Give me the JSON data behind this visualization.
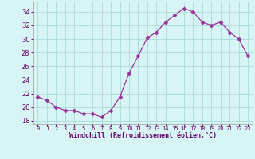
{
  "x": [
    0,
    1,
    2,
    3,
    4,
    5,
    6,
    7,
    8,
    9,
    10,
    11,
    12,
    13,
    14,
    15,
    16,
    17,
    18,
    19,
    20,
    21,
    22,
    23
  ],
  "y": [
    21.5,
    21.0,
    20.0,
    19.5,
    19.5,
    19.0,
    19.0,
    18.5,
    19.5,
    21.5,
    25.0,
    27.5,
    30.2,
    31.0,
    32.5,
    33.5,
    34.5,
    34.0,
    32.5,
    32.0,
    32.5,
    31.0,
    30.0,
    27.5
  ],
  "line_color": "#993399",
  "marker": "D",
  "marker_size": 2.5,
  "bg_color": "#d8f5f5",
  "grid_color": "#b0dede",
  "xlabel": "Windchill (Refroidissement éolien,°C)",
  "ylabel_ticks": [
    18,
    20,
    22,
    24,
    26,
    28,
    30,
    32,
    34
  ],
  "xlim": [
    -0.5,
    23.5
  ],
  "ylim": [
    17.5,
    35.5
  ],
  "xtick_labels": [
    "0",
    "1",
    "2",
    "3",
    "4",
    "5",
    "6",
    "7",
    "8",
    "9",
    "10",
    "11",
    "12",
    "13",
    "14",
    "15",
    "16",
    "17",
    "18",
    "19",
    "20",
    "21",
    "22",
    "23"
  ]
}
